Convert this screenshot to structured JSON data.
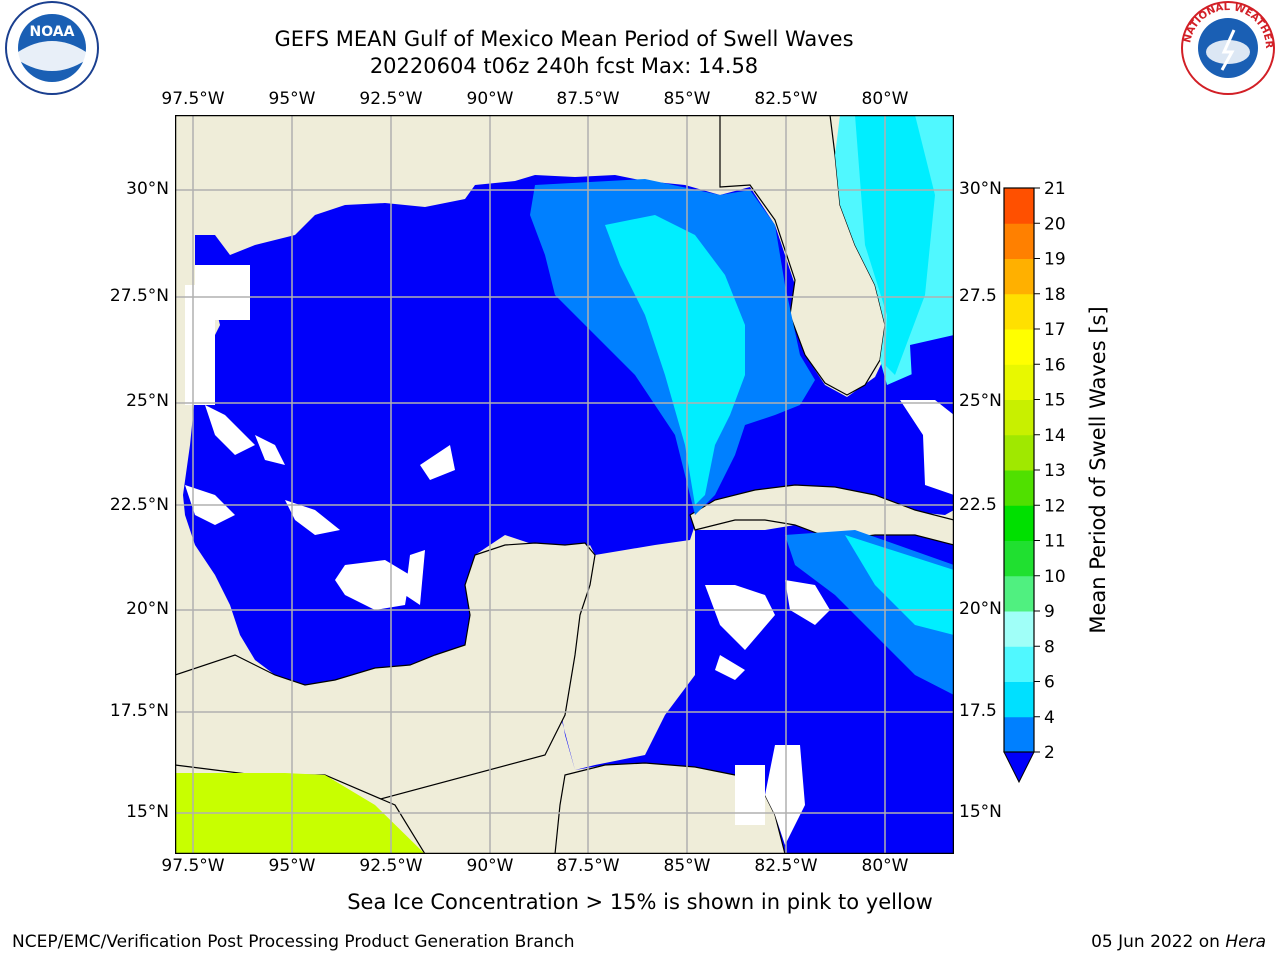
{
  "header": {
    "title_line1": "GEFS MEAN Gulf of Mexico Mean Period of Swell Waves",
    "title_line2": "20220604 t06z 240h fcst   Max: 14.58"
  },
  "map": {
    "lon_ticks": [
      "97.5°W",
      "95°W",
      "92.5°W",
      "90°W",
      "87.5°W",
      "85°W",
      "82.5°W",
      "80°W"
    ],
    "lat_ticks_left": [
      "30°N",
      "27.5°N",
      "25°N",
      "22.5°N",
      "20°N",
      "17.5°N",
      "15°N"
    ],
    "lat_ticks_right": [
      "30°N",
      "27.5",
      "25°N",
      "22.5",
      "20°N",
      "17.5",
      "15°N"
    ],
    "colors": {
      "land": "#efedd9",
      "sea_2_4": "#0000fa",
      "sea_4_6": "#0080ff",
      "sea_6_8": "#00eeff",
      "sea_8_9": "#50f8ff",
      "sea_12_13": "#c8ff00",
      "grid": "#b0b0b0"
    }
  },
  "colorbar": {
    "label": "Mean Period of Swell Waves [s]",
    "ticks": [
      "2",
      "4",
      "6",
      "8",
      "9",
      "10",
      "11",
      "12",
      "13",
      "14",
      "15",
      "16",
      "17",
      "18",
      "19",
      "20",
      "21"
    ],
    "colors": [
      "#0080ff",
      "#00e0ff",
      "#50f8ff",
      "#a0fff8",
      "#50f080",
      "#20e030",
      "#00e000",
      "#50e000",
      "#a0e800",
      "#c8f000",
      "#e8f800",
      "#ffff00",
      "#ffe000",
      "#ffb000",
      "#ff8000",
      "#ff5000",
      "#ff2000",
      "#ff0000"
    ],
    "extend_color": "#0000fa"
  },
  "bottom_note": "Sea Ice Concentration > 15% is shown in pink to yellow",
  "footer": {
    "left": "NCEP/EMC/Verification Post Processing Product Generation Branch",
    "right_date": "05 Jun 2022 on ",
    "right_host": "Hera"
  },
  "logos": {
    "noaa_text": "NOAA",
    "nws_text": "NATIONAL WEATHER SERVICE"
  }
}
